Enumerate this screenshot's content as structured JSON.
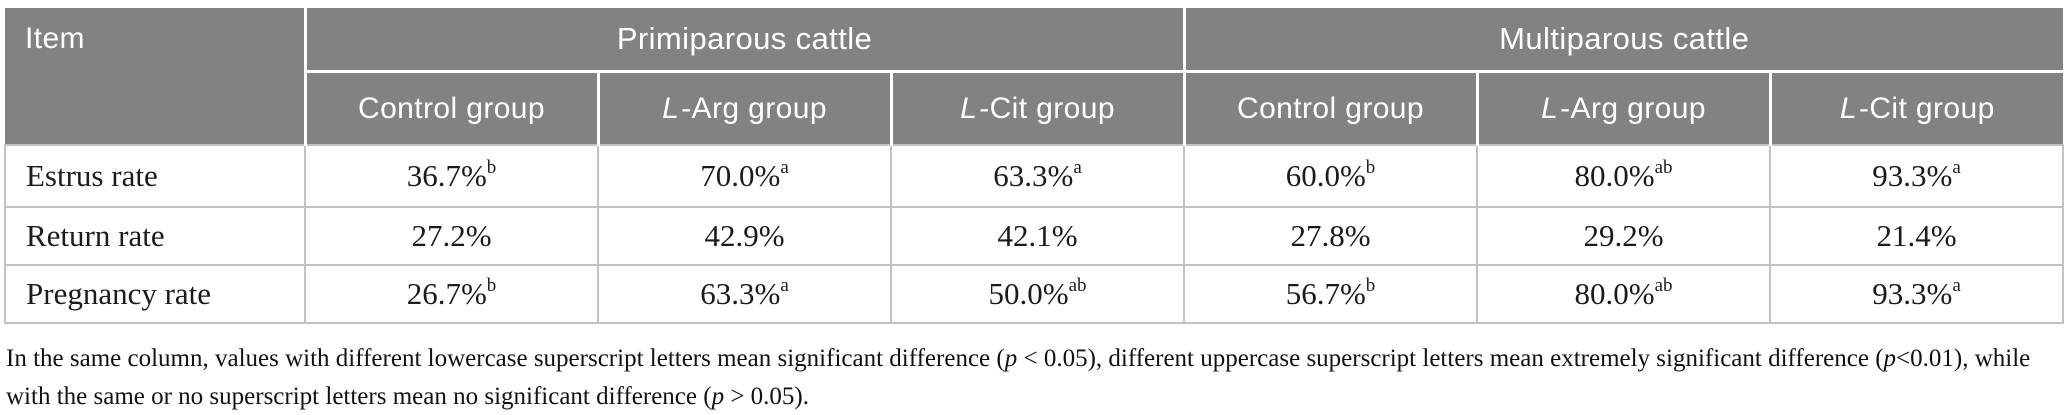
{
  "colors": {
    "header_bg": "#828282",
    "header_text": "#ffffff",
    "body_text": "#1b1b1b",
    "cell_border": "#c2c2c2",
    "page_bg": "#ffffff"
  },
  "table": {
    "item_header": "Item",
    "col_groups": [
      {
        "label": "Primiparous cattle",
        "span": 3
      },
      {
        "label": "Multiparous cattle",
        "span": 3
      }
    ],
    "sub_headers": [
      {
        "italic_prefix": "",
        "label": "Control group"
      },
      {
        "italic_prefix": "L",
        "label": "-Arg group"
      },
      {
        "italic_prefix": "L",
        "label": "-Cit group"
      },
      {
        "italic_prefix": "",
        "label": "Control group"
      },
      {
        "italic_prefix": "L",
        "label": "-Arg group"
      },
      {
        "italic_prefix": "L",
        "label": "-Cit group"
      }
    ],
    "rows": [
      {
        "label": "Estrus rate",
        "cells": [
          {
            "value": "36.7%",
            "sup": "b"
          },
          {
            "value": "70.0%",
            "sup": "a"
          },
          {
            "value": "63.3%",
            "sup": "a"
          },
          {
            "value": "60.0%",
            "sup": "b"
          },
          {
            "value": "80.0%",
            "sup": "ab"
          },
          {
            "value": "93.3%",
            "sup": "a"
          }
        ]
      },
      {
        "label": "Return rate",
        "cells": [
          {
            "value": "27.2%",
            "sup": ""
          },
          {
            "value": "42.9%",
            "sup": ""
          },
          {
            "value": "42.1%",
            "sup": ""
          },
          {
            "value": "27.8%",
            "sup": ""
          },
          {
            "value": "29.2%",
            "sup": ""
          },
          {
            "value": "21.4%",
            "sup": ""
          }
        ]
      },
      {
        "label": "Pregnancy rate",
        "cells": [
          {
            "value": "26.7%",
            "sup": "b"
          },
          {
            "value": "63.3%",
            "sup": "a"
          },
          {
            "value": "50.0%",
            "sup": "ab"
          },
          {
            "value": "56.7%",
            "sup": "b"
          },
          {
            "value": "80.0%",
            "sup": "ab"
          },
          {
            "value": "93.3%",
            "sup": "a"
          }
        ]
      }
    ]
  },
  "footnote": {
    "segments": [
      {
        "t": "In the same column, values with different lowercase superscript letters mean significant difference (",
        "i": false
      },
      {
        "t": "p",
        "i": true
      },
      {
        "t": " < 0.05), different uppercase superscript letters mean extremely significant difference (",
        "i": false
      },
      {
        "t": "p",
        "i": true
      },
      {
        "t": "<0.01), while with the same or no superscript letters mean no significant difference (",
        "i": false
      },
      {
        "t": "p",
        "i": true
      },
      {
        "t": " > 0.05).",
        "i": false
      }
    ]
  }
}
